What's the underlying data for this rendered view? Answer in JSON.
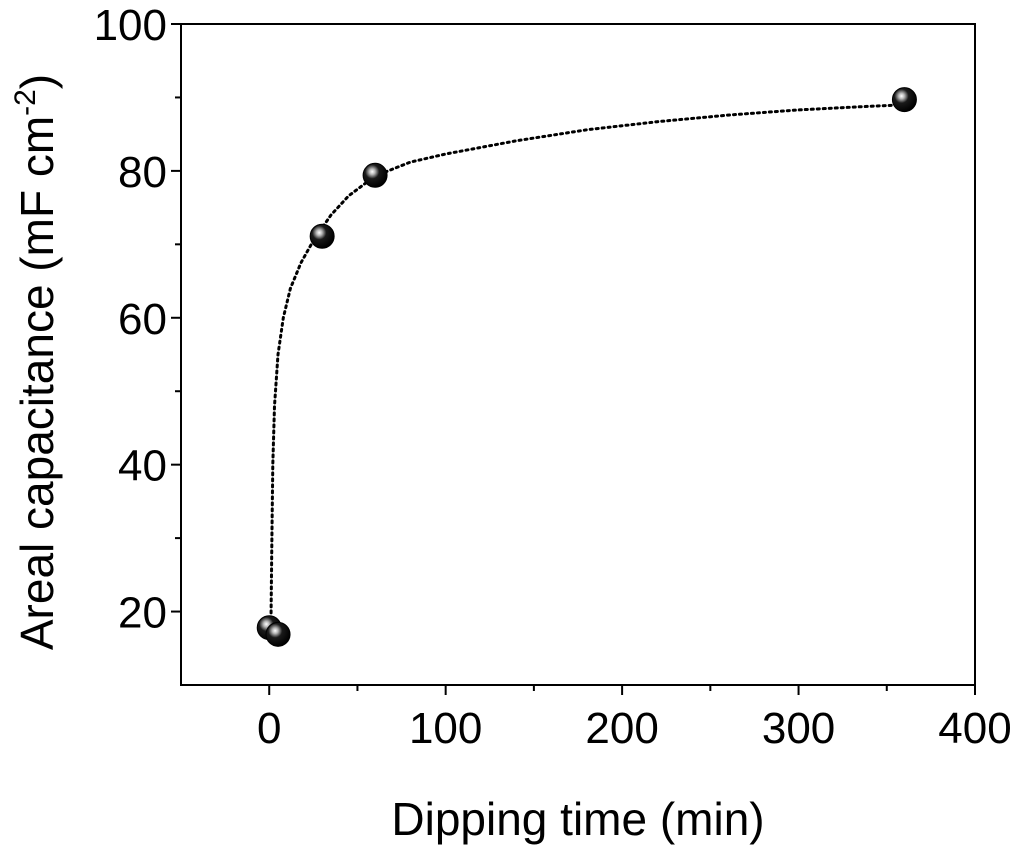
{
  "chart_data": {
    "type": "scatter",
    "xlabel": "Dipping time (min)",
    "ylabel_main": "Areal capacitance (mF cm",
    "ylabel_sup": "-2",
    "ylabel_close": ")",
    "xlim": [
      -50,
      400
    ],
    "ylim": [
      10,
      100
    ],
    "x_ticks": [
      0,
      100,
      200,
      300,
      400
    ],
    "x_tick_labels": [
      "0",
      "100",
      "200",
      "300",
      "400"
    ],
    "x_minor_ticks": [
      50,
      150,
      250,
      350
    ],
    "y_ticks": [
      20,
      40,
      60,
      80,
      100
    ],
    "y_tick_labels": [
      "20",
      "40",
      "60",
      "80",
      "100"
    ],
    "y_minor_ticks": [
      30,
      50,
      70,
      90
    ],
    "grid": false,
    "marker_color": "#000000",
    "fit_line_style": "dotted",
    "points": [
      {
        "x": 0,
        "y": 17.8
      },
      {
        "x": 5,
        "y": 16.9
      },
      {
        "x": 30,
        "y": 71.1
      },
      {
        "x": 60,
        "y": 79.4
      },
      {
        "x": 360,
        "y": 89.7
      }
    ],
    "fit_curve": [
      {
        "x": 1,
        "y": 19
      },
      {
        "x": 1.5,
        "y": 30
      },
      {
        "x": 2,
        "y": 40
      },
      {
        "x": 3,
        "y": 48
      },
      {
        "x": 5,
        "y": 55
      },
      {
        "x": 8,
        "y": 60
      },
      {
        "x": 12,
        "y": 64
      },
      {
        "x": 18,
        "y": 67.5
      },
      {
        "x": 25,
        "y": 70.5
      },
      {
        "x": 35,
        "y": 74
      },
      {
        "x": 45,
        "y": 76.6
      },
      {
        "x": 60,
        "y": 79.3
      },
      {
        "x": 80,
        "y": 81.2
      },
      {
        "x": 100,
        "y": 82.3
      },
      {
        "x": 140,
        "y": 84.1
      },
      {
        "x": 180,
        "y": 85.6
      },
      {
        "x": 220,
        "y": 86.7
      },
      {
        "x": 260,
        "y": 87.6
      },
      {
        "x": 300,
        "y": 88.3
      },
      {
        "x": 340,
        "y": 88.8
      },
      {
        "x": 360,
        "y": 89
      }
    ]
  }
}
